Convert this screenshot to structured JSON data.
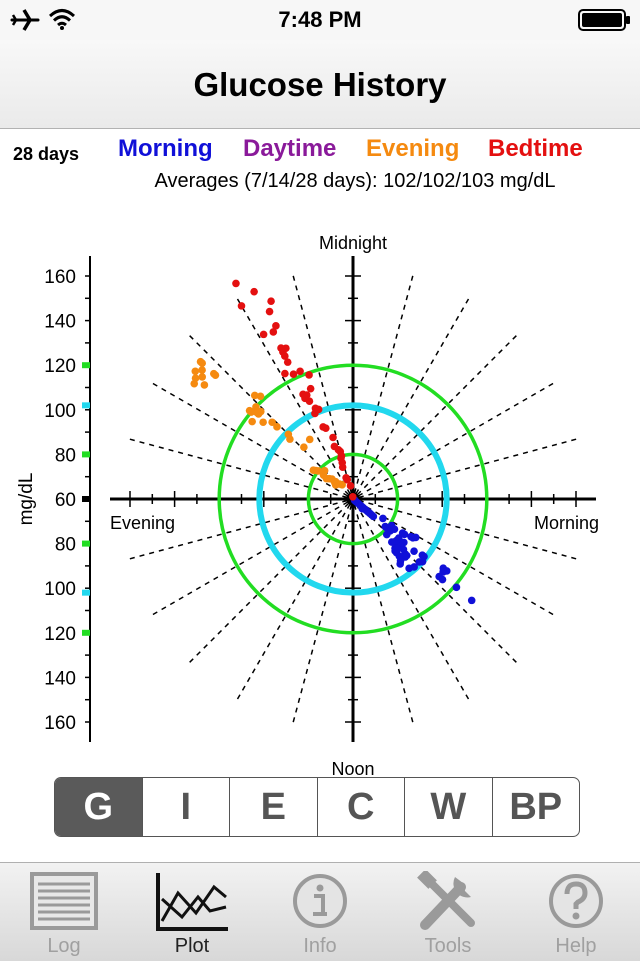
{
  "status": {
    "time": "7:48 PM"
  },
  "nav": {
    "title": "Glucose History"
  },
  "summary": {
    "days": "28 days",
    "legend": [
      {
        "label": "Morning",
        "color": "#1010d8"
      },
      {
        "label": "Daytime",
        "color": "#8a1a9a"
      },
      {
        "label": "Evening",
        "color": "#f58a10"
      },
      {
        "label": "Bedtime",
        "color": "#e41010"
      }
    ],
    "averages": "Averages (7/14/28 days): 102/102/103 mg/dL"
  },
  "chart_data": {
    "type": "scatter",
    "polar": true,
    "ylabel": "mg/dL",
    "axis_labels": {
      "top": "Midnight",
      "bottom": "Noon",
      "left": "Evening",
      "right": "Morning"
    },
    "radial_ticks": [
      160,
      140,
      120,
      100,
      80,
      60,
      80,
      100,
      120,
      140,
      160
    ],
    "center_value": 60,
    "range": [
      60,
      160
    ],
    "circles": [
      {
        "value": 80,
        "color": "#22dd22"
      },
      {
        "value": 102,
        "color": "#22d8ee"
      },
      {
        "value": 120,
        "color": "#22dd22"
      }
    ],
    "marker_colors": {
      "green": "#22dd22",
      "cyan": "#22d8ee"
    },
    "series": [
      {
        "name": "Morning",
        "color": "#1010d8",
        "points": [
          [
            8.8,
            61
          ],
          [
            9.1,
            66
          ],
          [
            8.2,
            61
          ],
          [
            8.7,
            62
          ],
          [
            8.7,
            63
          ],
          [
            8.7,
            64
          ],
          [
            8.7,
            65
          ],
          [
            8.7,
            66
          ],
          [
            8.7,
            67
          ],
          [
            8.7,
            68
          ],
          [
            8.7,
            69
          ],
          [
            8.7,
            70
          ],
          [
            8.7,
            71
          ],
          [
            8.7,
            72
          ],
          [
            8.7,
            79
          ],
          [
            8.7,
            80
          ],
          [
            8.7,
            82
          ],
          [
            8.7,
            87
          ],
          [
            8.7,
            90
          ],
          [
            8.7,
            96
          ],
          [
            8.3,
            81
          ],
          [
            8.4,
            83
          ],
          [
            8.2,
            76
          ],
          [
            8.3,
            87
          ],
          [
            8.3,
            88
          ],
          [
            8.2,
            91
          ],
          [
            8.2,
            92
          ],
          [
            8.1,
            93
          ],
          [
            9.1,
            88
          ],
          [
            9.0,
            89
          ],
          [
            9.1,
            94
          ],
          [
            9.3,
            89
          ],
          [
            9.0,
            92
          ],
          [
            9.2,
            95
          ],
          [
            9.1,
            95
          ],
          [
            9.4,
            93
          ],
          [
            9.5,
            95
          ],
          [
            9.6,
            96
          ],
          [
            9.2,
            86
          ],
          [
            9.1,
            82
          ],
          [
            9.4,
            91
          ],
          [
            9.2,
            90
          ],
          [
            9.4,
            90
          ],
          [
            8.9,
            87
          ],
          [
            8.6,
            100
          ],
          [
            8.6,
            101
          ],
          [
            9.2,
            101
          ],
          [
            9.4,
            100
          ],
          [
            8.9,
            101
          ],
          [
            8.5,
            111
          ],
          [
            8.5,
            113
          ],
          [
            8.8,
            112
          ],
          [
            8.6,
            112
          ],
          [
            8.8,
            114
          ],
          [
            8.7,
            121
          ],
          [
            8.7,
            130
          ],
          [
            8.8,
            102
          ]
        ]
      },
      {
        "name": "Daytime",
        "color": "#8a1a9a",
        "points": []
      },
      {
        "name": "Evening",
        "color": "#f58a10",
        "points": [
          [
            21.5,
            68
          ],
          [
            21.2,
            69
          ],
          [
            20.8,
            71
          ],
          [
            21.0,
            71
          ],
          [
            20.6,
            70
          ],
          [
            20.9,
            73
          ],
          [
            20.7,
            74
          ],
          [
            20.5,
            75
          ],
          [
            20.6,
            77
          ],
          [
            21.0,
            78
          ],
          [
            20.6,
            80
          ],
          [
            20.5,
            81
          ],
          [
            20.4,
            82
          ],
          [
            21.1,
            92
          ],
          [
            20.9,
            99
          ],
          [
            21.6,
            93
          ],
          [
            21.0,
            101
          ],
          [
            20.9,
            107
          ],
          [
            20.9,
            110
          ],
          [
            20.7,
            113
          ],
          [
            20.5,
            117
          ],
          [
            20.8,
            117
          ],
          [
            20.9,
            117
          ],
          [
            20.8,
            118
          ],
          [
            20.8,
            119
          ],
          [
            20.9,
            120
          ],
          [
            20.7,
            120
          ],
          [
            20.7,
            121
          ],
          [
            21.2,
            122
          ],
          [
            21.1,
            124
          ],
          [
            20.8,
            143
          ],
          [
            20.8,
            144
          ],
          [
            20.6,
            147
          ],
          [
            20.6,
            151
          ],
          [
            20.8,
            152
          ],
          [
            20.5,
            149
          ],
          [
            20.7,
            149
          ],
          [
            20.5,
            144
          ],
          [
            20.4,
            148
          ],
          [
            20.8,
            151
          ]
        ]
      },
      {
        "name": "Bedtime",
        "color": "#e41010",
        "points": [
          [
            23.6,
            61
          ],
          [
            23.3,
            66
          ],
          [
            22.9,
            69
          ],
          [
            22.8,
            70
          ],
          [
            22.8,
            75
          ],
          [
            22.9,
            77
          ],
          [
            22.9,
            79
          ],
          [
            23.0,
            80
          ],
          [
            23.0,
            82
          ],
          [
            22.9,
            83
          ],
          [
            22.7,
            85
          ],
          [
            22.8,
            89
          ],
          [
            22.6,
            94
          ],
          [
            22.5,
            95
          ],
          [
            22.4,
            102
          ],
          [
            22.6,
            103
          ],
          [
            22.5,
            104
          ],
          [
            22.4,
            108
          ],
          [
            22.3,
            110
          ],
          [
            22.4,
            111
          ],
          [
            22.3,
            112
          ],
          [
            22.6,
            113
          ],
          [
            22.7,
            119
          ],
          [
            22.5,
            122
          ],
          [
            22.3,
            122
          ],
          [
            22.1,
            124
          ],
          [
            22.3,
            128
          ],
          [
            22.3,
            131
          ],
          [
            22.3,
            133
          ],
          [
            22.4,
            134
          ],
          [
            22.3,
            135
          ],
          [
            22.3,
            143
          ],
          [
            22.4,
            145
          ],
          [
            22.1,
            144
          ],
          [
            22.4,
            152
          ],
          [
            22.5,
            156
          ],
          [
            22.3,
            163
          ],
          [
            22.0,
            160
          ],
          [
            22.1,
            170
          ]
        ]
      }
    ]
  },
  "segments": [
    "G",
    "I",
    "E",
    "C",
    "W",
    "BP"
  ],
  "tabs": [
    {
      "label": "Log",
      "icon": "log-icon"
    },
    {
      "label": "Plot",
      "icon": "plot-icon"
    },
    {
      "label": "Info",
      "icon": "info-icon"
    },
    {
      "label": "Tools",
      "icon": "tools-icon"
    },
    {
      "label": "Help",
      "icon": "help-icon"
    }
  ]
}
